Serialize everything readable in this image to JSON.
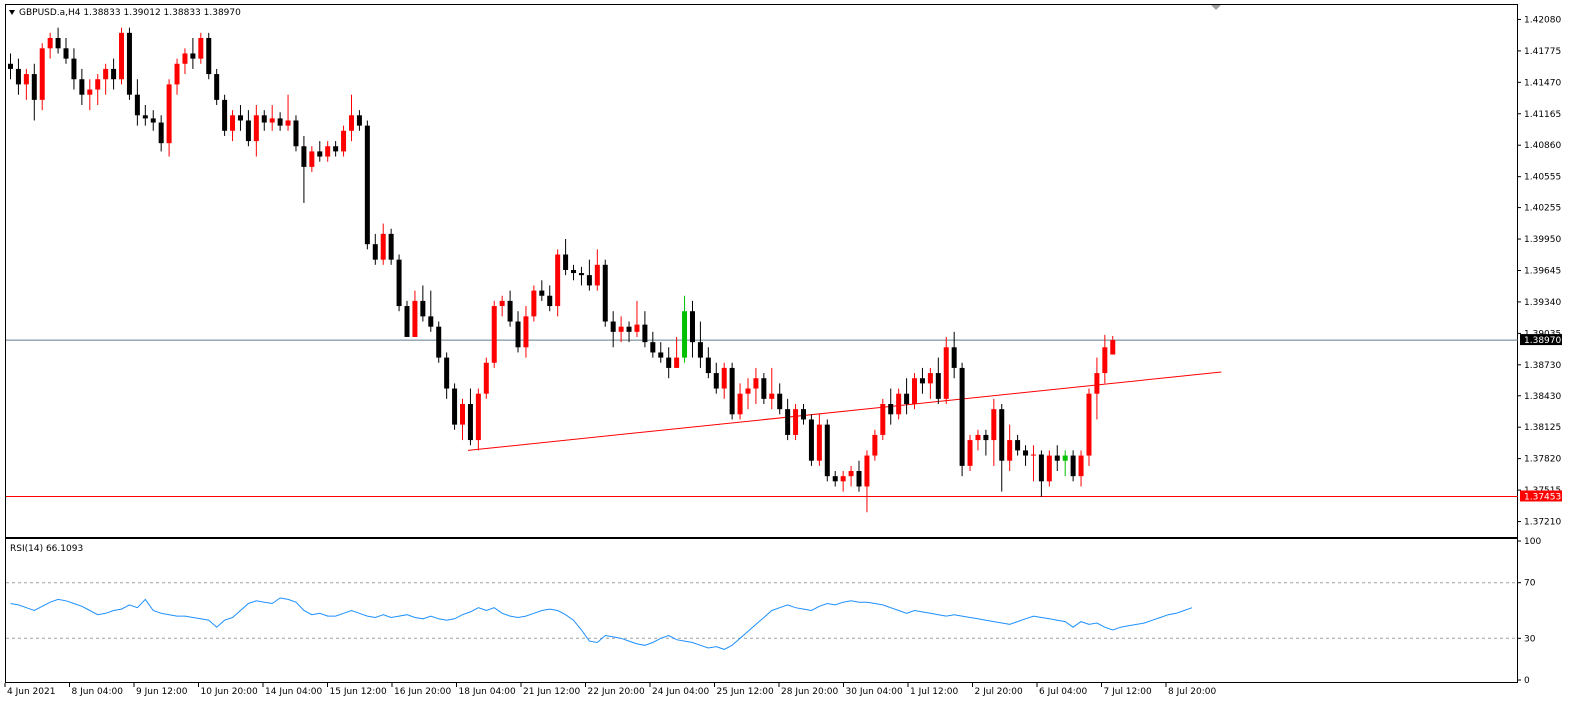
{
  "header": {
    "symbol_line": "GBPUSD.a,H4  1.38833 1.39012 1.38833 1.38970",
    "menu_icon": "triangle-down-icon"
  },
  "rsi_header": {
    "label": "RSI(14) 66.1093"
  },
  "colors": {
    "bull": "#ff0000",
    "bear": "#000000",
    "bid_line": "#607b8b",
    "support_line": "#ff0000",
    "trend_line": "#ff0000",
    "rsi_line": "#1e90ff",
    "rsi_level": "#a0a0a0",
    "doji_green": "#00c000"
  },
  "chart_data": [
    {
      "type": "candlestick",
      "title": "GBPUSD.a,H4",
      "ylim": [
        1.3706,
        1.4222
      ],
      "y_ticks": [
        "1.42080",
        "1.41775",
        "1.41470",
        "1.41165",
        "1.40860",
        "1.40555",
        "1.40255",
        "1.39950",
        "1.39645",
        "1.39340",
        "1.39035",
        "1.38730",
        "1.38430",
        "1.38125",
        "1.37820",
        "1.37515",
        "1.37210"
      ],
      "x_ticks": [
        "4 Jun 2021",
        "8 Jun 04:00",
        "9 Jun 12:00",
        "10 Jun 20:00",
        "14 Jun 04:00",
        "15 Jun 12:00",
        "16 Jun 20:00",
        "18 Jun 04:00",
        "21 Jun 12:00",
        "22 Jun 20:00",
        "24 Jun 04:00",
        "25 Jun 12:00",
        "28 Jun 20:00",
        "30 Jun 04:00",
        "1 Jul 12:00",
        "2 Jul 20:00",
        "6 Jul 04:00",
        "7 Jul 12:00",
        "8 Jul 20:00"
      ],
      "ohlc": [
        [
          1.4165,
          1.4175,
          1.415,
          1.416
        ],
        [
          1.416,
          1.417,
          1.4135,
          1.4145
        ],
        [
          1.4145,
          1.416,
          1.413,
          1.4155
        ],
        [
          1.4155,
          1.4165,
          1.411,
          1.413
        ],
        [
          1.413,
          1.4185,
          1.412,
          1.418
        ],
        [
          1.418,
          1.4195,
          1.417,
          1.419
        ],
        [
          1.419,
          1.42,
          1.4175,
          1.418
        ],
        [
          1.418,
          1.419,
          1.4165,
          1.417
        ],
        [
          1.417,
          1.418,
          1.414,
          1.415
        ],
        [
          1.415,
          1.416,
          1.4125,
          1.4135
        ],
        [
          1.4135,
          1.415,
          1.412,
          1.414
        ],
        [
          1.414,
          1.4155,
          1.4125,
          1.415
        ],
        [
          1.415,
          1.4165,
          1.4135,
          1.416
        ],
        [
          1.416,
          1.417,
          1.414,
          1.415
        ],
        [
          1.415,
          1.42,
          1.4145,
          1.4195
        ],
        [
          1.4195,
          1.42,
          1.413,
          1.4135
        ],
        [
          1.4135,
          1.415,
          1.4105,
          1.4115
        ],
        [
          1.4115,
          1.4125,
          1.4105,
          1.4112
        ],
        [
          1.4112,
          1.412,
          1.41,
          1.4108
        ],
        [
          1.4108,
          1.4115,
          1.408,
          1.4088
        ],
        [
          1.4088,
          1.415,
          1.4075,
          1.4145
        ],
        [
          1.4145,
          1.417,
          1.4135,
          1.4165
        ],
        [
          1.4165,
          1.418,
          1.4155,
          1.4175
        ],
        [
          1.4175,
          1.419,
          1.416,
          1.417
        ],
        [
          1.417,
          1.4195,
          1.4165,
          1.419
        ],
        [
          1.419,
          1.4195,
          1.415,
          1.4155
        ],
        [
          1.4155,
          1.416,
          1.4125,
          1.413
        ],
        [
          1.413,
          1.4135,
          1.4095,
          1.41
        ],
        [
          1.41,
          1.412,
          1.409,
          1.4115
        ],
        [
          1.4115,
          1.4125,
          1.41,
          1.411
        ],
        [
          1.411,
          1.412,
          1.4085,
          1.409
        ],
        [
          1.409,
          1.4125,
          1.4075,
          1.4115
        ],
        [
          1.4115,
          1.412,
          1.41,
          1.4108
        ],
        [
          1.4108,
          1.4125,
          1.41,
          1.4112
        ],
        [
          1.4112,
          1.4118,
          1.41,
          1.4105
        ],
        [
          1.4105,
          1.4135,
          1.41,
          1.411
        ],
        [
          1.411,
          1.4115,
          1.408,
          1.4085
        ],
        [
          1.4085,
          1.4095,
          1.403,
          1.4065
        ],
        [
          1.4065,
          1.4085,
          1.406,
          1.408
        ],
        [
          1.408,
          1.409,
          1.407,
          1.4075
        ],
        [
          1.4075,
          1.409,
          1.407,
          1.4085
        ],
        [
          1.4085,
          1.409,
          1.4075,
          1.408
        ],
        [
          1.408,
          1.4105,
          1.4075,
          1.41
        ],
        [
          1.41,
          1.4135,
          1.409,
          1.4115
        ],
        [
          1.4115,
          1.412,
          1.41,
          1.4105
        ],
        [
          1.4105,
          1.411,
          1.3985,
          1.399
        ],
        [
          1.399,
          1.4,
          1.397,
          1.3975
        ],
        [
          1.3975,
          1.401,
          1.397,
          1.4
        ],
        [
          1.4,
          1.4005,
          1.397,
          1.3975
        ],
        [
          1.3975,
          1.398,
          1.3925,
          1.393
        ],
        [
          1.393,
          1.3935,
          1.39,
          1.39
        ],
        [
          1.39,
          1.3945,
          1.39,
          1.3935
        ],
        [
          1.3935,
          1.395,
          1.3915,
          1.392
        ],
        [
          1.392,
          1.3945,
          1.3905,
          1.391
        ],
        [
          1.391,
          1.3915,
          1.3875,
          1.388
        ],
        [
          1.388,
          1.3885,
          1.384,
          1.385
        ],
        [
          1.385,
          1.3855,
          1.381,
          1.3815
        ],
        [
          1.3815,
          1.384,
          1.38,
          1.3835
        ],
        [
          1.3835,
          1.385,
          1.3795,
          1.38
        ],
        [
          1.38,
          1.385,
          1.379,
          1.3845
        ],
        [
          1.3845,
          1.388,
          1.384,
          1.3875
        ],
        [
          1.3875,
          1.3935,
          1.387,
          1.393
        ],
        [
          1.393,
          1.394,
          1.392,
          1.3935
        ],
        [
          1.3935,
          1.3945,
          1.391,
          1.3915
        ],
        [
          1.3915,
          1.3925,
          1.3885,
          1.389
        ],
        [
          1.389,
          1.393,
          1.388,
          1.392
        ],
        [
          1.392,
          1.395,
          1.3915,
          1.3945
        ],
        [
          1.3945,
          1.3955,
          1.3935,
          1.394
        ],
        [
          1.394,
          1.395,
          1.3925,
          1.393
        ],
        [
          1.393,
          1.3985,
          1.392,
          1.398
        ],
        [
          1.398,
          1.3995,
          1.396,
          1.3965
        ],
        [
          1.3965,
          1.397,
          1.3955,
          1.3962
        ],
        [
          1.3962,
          1.3968,
          1.395,
          1.396
        ],
        [
          1.396,
          1.3975,
          1.3945,
          1.395
        ],
        [
          1.395,
          1.3985,
          1.3945,
          1.397
        ],
        [
          1.397,
          1.3975,
          1.391,
          1.3915
        ],
        [
          1.3915,
          1.3925,
          1.389,
          1.3905
        ],
        [
          1.3905,
          1.392,
          1.3895,
          1.391
        ],
        [
          1.391,
          1.3915,
          1.3895,
          1.3905
        ],
        [
          1.3905,
          1.3935,
          1.39,
          1.3912
        ],
        [
          1.3912,
          1.3925,
          1.389,
          1.3895
        ],
        [
          1.3895,
          1.3905,
          1.388,
          1.3885
        ],
        [
          1.3885,
          1.3895,
          1.3875,
          1.388
        ],
        [
          1.388,
          1.389,
          1.386,
          1.387
        ],
        [
          1.387,
          1.39,
          1.387,
          1.388
        ],
        [
          1.388,
          1.394,
          1.3875,
          1.3925
        ],
        [
          1.3925,
          1.3935,
          1.388,
          1.3895
        ],
        [
          1.3895,
          1.3915,
          1.387,
          1.388
        ],
        [
          1.388,
          1.389,
          1.386,
          1.3865
        ],
        [
          1.3865,
          1.3875,
          1.3845,
          1.385
        ],
        [
          1.385,
          1.3875,
          1.384,
          1.387
        ],
        [
          1.387,
          1.3875,
          1.382,
          1.3825
        ],
        [
          1.3825,
          1.3855,
          1.382,
          1.3845
        ],
        [
          1.3845,
          1.386,
          1.383,
          1.385
        ],
        [
          1.385,
          1.387,
          1.3835,
          1.386
        ],
        [
          1.386,
          1.3865,
          1.3835,
          1.384
        ],
        [
          1.384,
          1.387,
          1.383,
          1.3845
        ],
        [
          1.3845,
          1.3855,
          1.3825,
          1.383
        ],
        [
          1.383,
          1.384,
          1.38,
          1.3805
        ],
        [
          1.3805,
          1.3835,
          1.38,
          1.383
        ],
        [
          1.383,
          1.3835,
          1.3815,
          1.382
        ],
        [
          1.382,
          1.3825,
          1.3775,
          1.378
        ],
        [
          1.378,
          1.3825,
          1.3775,
          1.3815
        ],
        [
          1.3815,
          1.382,
          1.376,
          1.3765
        ],
        [
          1.3765,
          1.377,
          1.3755,
          1.376
        ],
        [
          1.376,
          1.377,
          1.375,
          1.3765
        ],
        [
          1.3765,
          1.3775,
          1.3755,
          1.377
        ],
        [
          1.377,
          1.378,
          1.375,
          1.3755
        ],
        [
          1.3755,
          1.379,
          1.373,
          1.3785
        ],
        [
          1.3785,
          1.381,
          1.378,
          1.3805
        ],
        [
          1.3805,
          1.384,
          1.38,
          1.3835
        ],
        [
          1.3835,
          1.385,
          1.3815,
          1.3825
        ],
        [
          1.3825,
          1.385,
          1.382,
          1.3845
        ],
        [
          1.3845,
          1.386,
          1.3825,
          1.3835
        ],
        [
          1.3835,
          1.3865,
          1.383,
          1.386
        ],
        [
          1.386,
          1.387,
          1.3845,
          1.3855
        ],
        [
          1.3855,
          1.387,
          1.384,
          1.3865
        ],
        [
          1.3865,
          1.388,
          1.3835,
          1.384
        ],
        [
          1.384,
          1.39,
          1.3835,
          1.389
        ],
        [
          1.389,
          1.3905,
          1.386,
          1.387
        ],
        [
          1.387,
          1.3875,
          1.3765,
          1.3775
        ],
        [
          1.3775,
          1.3805,
          1.377,
          1.38
        ],
        [
          1.38,
          1.381,
          1.379,
          1.3805
        ],
        [
          1.3805,
          1.381,
          1.3785,
          1.38
        ],
        [
          1.38,
          1.384,
          1.3775,
          1.383
        ],
        [
          1.383,
          1.3835,
          1.375,
          1.378
        ],
        [
          1.378,
          1.3815,
          1.377,
          1.38
        ],
        [
          1.38,
          1.3805,
          1.3785,
          1.379
        ],
        [
          1.379,
          1.3795,
          1.3775,
          1.3785
        ],
        [
          1.3785,
          1.3795,
          1.376,
          1.3786
        ],
        [
          1.3786,
          1.379,
          1.3745,
          1.376
        ],
        [
          1.376,
          1.379,
          1.3755,
          1.3785
        ],
        [
          1.3785,
          1.3795,
          1.377,
          1.378
        ],
        [
          1.378,
          1.379,
          1.3765,
          1.3785
        ],
        [
          1.3785,
          1.379,
          1.376,
          1.3765
        ],
        [
          1.3765,
          1.379,
          1.3755,
          1.3785
        ],
        [
          1.3785,
          1.385,
          1.3775,
          1.3845
        ],
        [
          1.3845,
          1.388,
          1.382,
          1.3865
        ],
        [
          1.3865,
          1.3902,
          1.3855,
          1.389
        ],
        [
          1.3883,
          1.3901,
          1.3883,
          1.3897
        ]
      ],
      "green_doji_index": [
        85,
        133
      ],
      "current_price": "1.38970",
      "support_level": "1.37453",
      "support_value": 1.37453,
      "trendline": {
        "from": [
          58,
          1.379
        ],
        "to": [
          153,
          1.3866
        ]
      }
    },
    {
      "type": "line",
      "title": "RSI(14)",
      "ylim": [
        0,
        100
      ],
      "y_ticks": [
        "100",
        "70",
        "30",
        "0"
      ],
      "levels": [
        70,
        30
      ],
      "values": [
        55,
        54,
        52,
        50,
        53,
        56,
        58,
        57,
        55,
        53,
        50,
        47,
        48,
        50,
        51,
        54,
        52,
        58,
        50,
        48,
        47,
        46,
        46,
        45,
        44,
        43,
        38,
        43,
        45,
        50,
        55,
        57,
        56,
        55,
        59,
        58,
        56,
        50,
        47,
        48,
        46,
        46,
        48,
        50,
        48,
        46,
        45,
        47,
        45,
        46,
        47,
        45,
        44,
        46,
        44,
        43,
        44,
        47,
        49,
        52,
        50,
        52,
        48,
        46,
        45,
        46,
        48,
        50,
        51,
        50,
        47,
        43,
        36,
        28,
        27,
        32,
        31,
        30,
        28,
        26,
        25,
        27,
        30,
        32,
        29,
        28,
        27,
        25,
        23,
        24,
        22,
        25,
        30,
        35,
        40,
        45,
        50,
        52,
        54,
        52,
        51,
        50,
        53,
        55,
        54,
        56,
        57,
        56,
        56,
        55,
        54,
        52,
        50,
        48,
        50,
        49,
        48,
        47,
        46,
        47,
        46,
        45,
        44,
        43,
        42,
        41,
        40,
        42,
        44,
        46,
        45,
        44,
        43,
        42,
        38,
        42,
        40,
        41,
        38,
        36,
        38,
        39,
        40,
        41,
        43,
        45,
        47,
        48,
        50,
        52
      ]
    }
  ]
}
